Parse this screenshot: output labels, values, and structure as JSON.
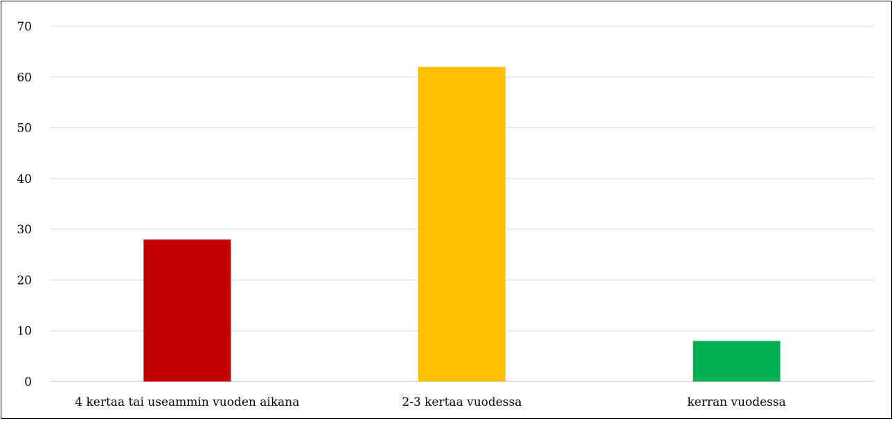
{
  "chart_data": {
    "type": "bar",
    "categories": [
      "4 kertaa tai useammin vuoden aikana",
      "2-3 kertaa vuodessa",
      "kerran vuodessa"
    ],
    "values": [
      28,
      62,
      8
    ],
    "colors": [
      "#c00000",
      "#ffc000",
      "#00b050"
    ],
    "title": "",
    "xlabel": "",
    "ylabel": "",
    "ylim": [
      0,
      70
    ],
    "yticks": [
      0,
      10,
      20,
      30,
      40,
      50,
      60,
      70
    ],
    "grid": true,
    "legend": "none"
  }
}
